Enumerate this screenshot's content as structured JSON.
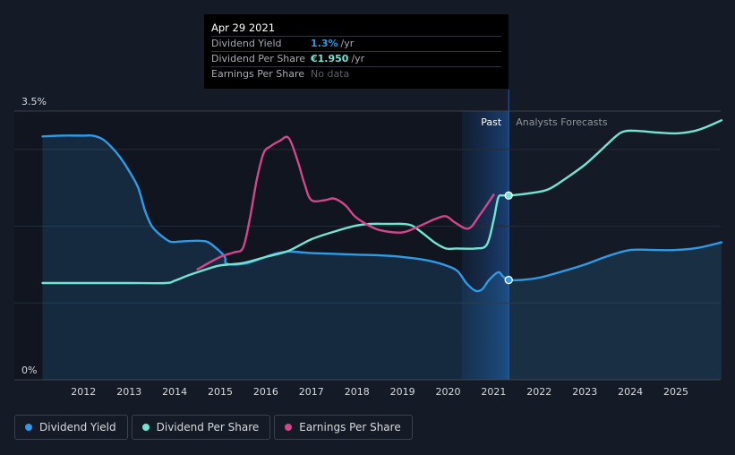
{
  "chart_data": {
    "type": "line",
    "title": "",
    "y_axis": {
      "top_label": "3.5%",
      "bottom_label": "0%",
      "range": [
        0,
        3.5
      ]
    },
    "x_ticks": [
      "2012",
      "2013",
      "2014",
      "2015",
      "2016",
      "2017",
      "2018",
      "2019",
      "2020",
      "2021",
      "2022",
      "2023",
      "2024",
      "2025"
    ],
    "x_range": [
      2011.1,
      2026.0
    ],
    "forecast_start": 2021.33,
    "past_band_start": 2020.3,
    "labels": {
      "past": "Past",
      "forecast": "Analysts Forecasts"
    },
    "series": [
      {
        "name": "Dividend Yield",
        "color": "#2f9be6",
        "fill": true,
        "points": [
          [
            2011.1,
            3.17
          ],
          [
            2011.5,
            3.18
          ],
          [
            2012.0,
            3.18
          ],
          [
            2012.2,
            3.18
          ],
          [
            2012.4,
            3.14
          ],
          [
            2012.6,
            3.04
          ],
          [
            2012.8,
            2.9
          ],
          [
            2013.0,
            2.72
          ],
          [
            2013.2,
            2.5
          ],
          [
            2013.35,
            2.2
          ],
          [
            2013.5,
            2.0
          ],
          [
            2013.7,
            1.88
          ],
          [
            2013.9,
            1.8
          ],
          [
            2014.1,
            1.8
          ],
          [
            2014.4,
            1.81
          ],
          [
            2014.7,
            1.8
          ],
          [
            2014.9,
            1.72
          ],
          [
            2015.1,
            1.6
          ],
          [
            2015.12,
            1.52
          ],
          [
            2015.3,
            1.5
          ],
          [
            2015.6,
            1.52
          ],
          [
            2015.9,
            1.58
          ],
          [
            2016.2,
            1.64
          ],
          [
            2016.5,
            1.67
          ],
          [
            2017.0,
            1.65
          ],
          [
            2017.5,
            1.64
          ],
          [
            2018.0,
            1.63
          ],
          [
            2018.5,
            1.62
          ],
          [
            2019.0,
            1.6
          ],
          [
            2019.5,
            1.56
          ],
          [
            2019.9,
            1.5
          ],
          [
            2020.2,
            1.42
          ],
          [
            2020.4,
            1.26
          ],
          [
            2020.6,
            1.16
          ],
          [
            2020.75,
            1.18
          ],
          [
            2020.9,
            1.3
          ],
          [
            2021.1,
            1.4
          ],
          [
            2021.2,
            1.35
          ],
          [
            2021.33,
            1.3
          ],
          [
            2021.6,
            1.3
          ],
          [
            2022.0,
            1.33
          ],
          [
            2022.5,
            1.41
          ],
          [
            2023.0,
            1.5
          ],
          [
            2023.5,
            1.61
          ],
          [
            2024.0,
            1.69
          ],
          [
            2024.5,
            1.69
          ],
          [
            2025.0,
            1.69
          ],
          [
            2025.5,
            1.72
          ],
          [
            2026.0,
            1.79
          ]
        ]
      },
      {
        "name": "Dividend Per Share",
        "color": "#73e3d2",
        "fill": false,
        "points": [
          [
            2011.1,
            1.26
          ],
          [
            2012.0,
            1.26
          ],
          [
            2013.0,
            1.26
          ],
          [
            2013.8,
            1.26
          ],
          [
            2014.0,
            1.29
          ],
          [
            2014.3,
            1.36
          ],
          [
            2014.7,
            1.44
          ],
          [
            2015.0,
            1.49
          ],
          [
            2015.5,
            1.52
          ],
          [
            2016.0,
            1.6
          ],
          [
            2016.5,
            1.68
          ],
          [
            2017.0,
            1.83
          ],
          [
            2017.5,
            1.93
          ],
          [
            2018.0,
            2.01
          ],
          [
            2018.3,
            2.03
          ],
          [
            2018.7,
            2.03
          ],
          [
            2019.0,
            2.03
          ],
          [
            2019.2,
            2.01
          ],
          [
            2019.4,
            1.93
          ],
          [
            2019.7,
            1.79
          ],
          [
            2019.95,
            1.71
          ],
          [
            2020.2,
            1.71
          ],
          [
            2020.6,
            1.71
          ],
          [
            2020.85,
            1.76
          ],
          [
            2021.0,
            2.08
          ],
          [
            2021.1,
            2.37
          ],
          [
            2021.2,
            2.4
          ],
          [
            2021.33,
            2.4
          ],
          [
            2021.8,
            2.43
          ],
          [
            2022.2,
            2.48
          ],
          [
            2022.6,
            2.63
          ],
          [
            2023.0,
            2.8
          ],
          [
            2023.3,
            2.96
          ],
          [
            2023.7,
            3.18
          ],
          [
            2023.9,
            3.24
          ],
          [
            2024.2,
            3.24
          ],
          [
            2024.6,
            3.22
          ],
          [
            2025.0,
            3.21
          ],
          [
            2025.4,
            3.24
          ],
          [
            2025.7,
            3.3
          ],
          [
            2026.0,
            3.38
          ]
        ]
      },
      {
        "name": "Earnings Per Share",
        "color": "#d2478c",
        "fill": false,
        "points": [
          [
            2014.5,
            1.44
          ],
          [
            2015.0,
            1.6
          ],
          [
            2015.3,
            1.66
          ],
          [
            2015.5,
            1.72
          ],
          [
            2015.65,
            2.1
          ],
          [
            2015.8,
            2.6
          ],
          [
            2015.95,
            2.95
          ],
          [
            2016.1,
            3.04
          ],
          [
            2016.3,
            3.11
          ],
          [
            2016.5,
            3.15
          ],
          [
            2016.7,
            2.85
          ],
          [
            2016.85,
            2.55
          ],
          [
            2017.0,
            2.34
          ],
          [
            2017.3,
            2.34
          ],
          [
            2017.5,
            2.36
          ],
          [
            2017.75,
            2.27
          ],
          [
            2017.95,
            2.13
          ],
          [
            2018.2,
            2.03
          ],
          [
            2018.5,
            1.95
          ],
          [
            2019.0,
            1.92
          ],
          [
            2019.4,
            2.01
          ],
          [
            2019.7,
            2.09
          ],
          [
            2019.95,
            2.13
          ],
          [
            2020.15,
            2.05
          ],
          [
            2020.45,
            1.97
          ],
          [
            2020.7,
            2.15
          ],
          [
            2021.0,
            2.41
          ]
        ]
      }
    ],
    "highlight": {
      "date": "Apr 29 2021",
      "x": 2021.33,
      "values": {
        "Dividend Yield": 1.3,
        "Dividend Per Share": 2.4
      }
    }
  },
  "tooltip": {
    "date": "Apr 29 2021",
    "rows": [
      {
        "label": "Dividend Yield",
        "value": "1.3%",
        "unit": "/yr",
        "color": "#2f9be6"
      },
      {
        "label": "Dividend Per Share",
        "value": "€1.950",
        "unit": "/yr",
        "color": "#73e3d2"
      },
      {
        "label": "Earnings Per Share",
        "value": "No data",
        "unit": "",
        "color": "#5c6068"
      }
    ]
  },
  "legend": [
    {
      "label": "Dividend Yield",
      "color": "#2f9be6"
    },
    {
      "label": "Dividend Per Share",
      "color": "#73e3d2"
    },
    {
      "label": "Earnings Per Share",
      "color": "#d2478c"
    }
  ]
}
